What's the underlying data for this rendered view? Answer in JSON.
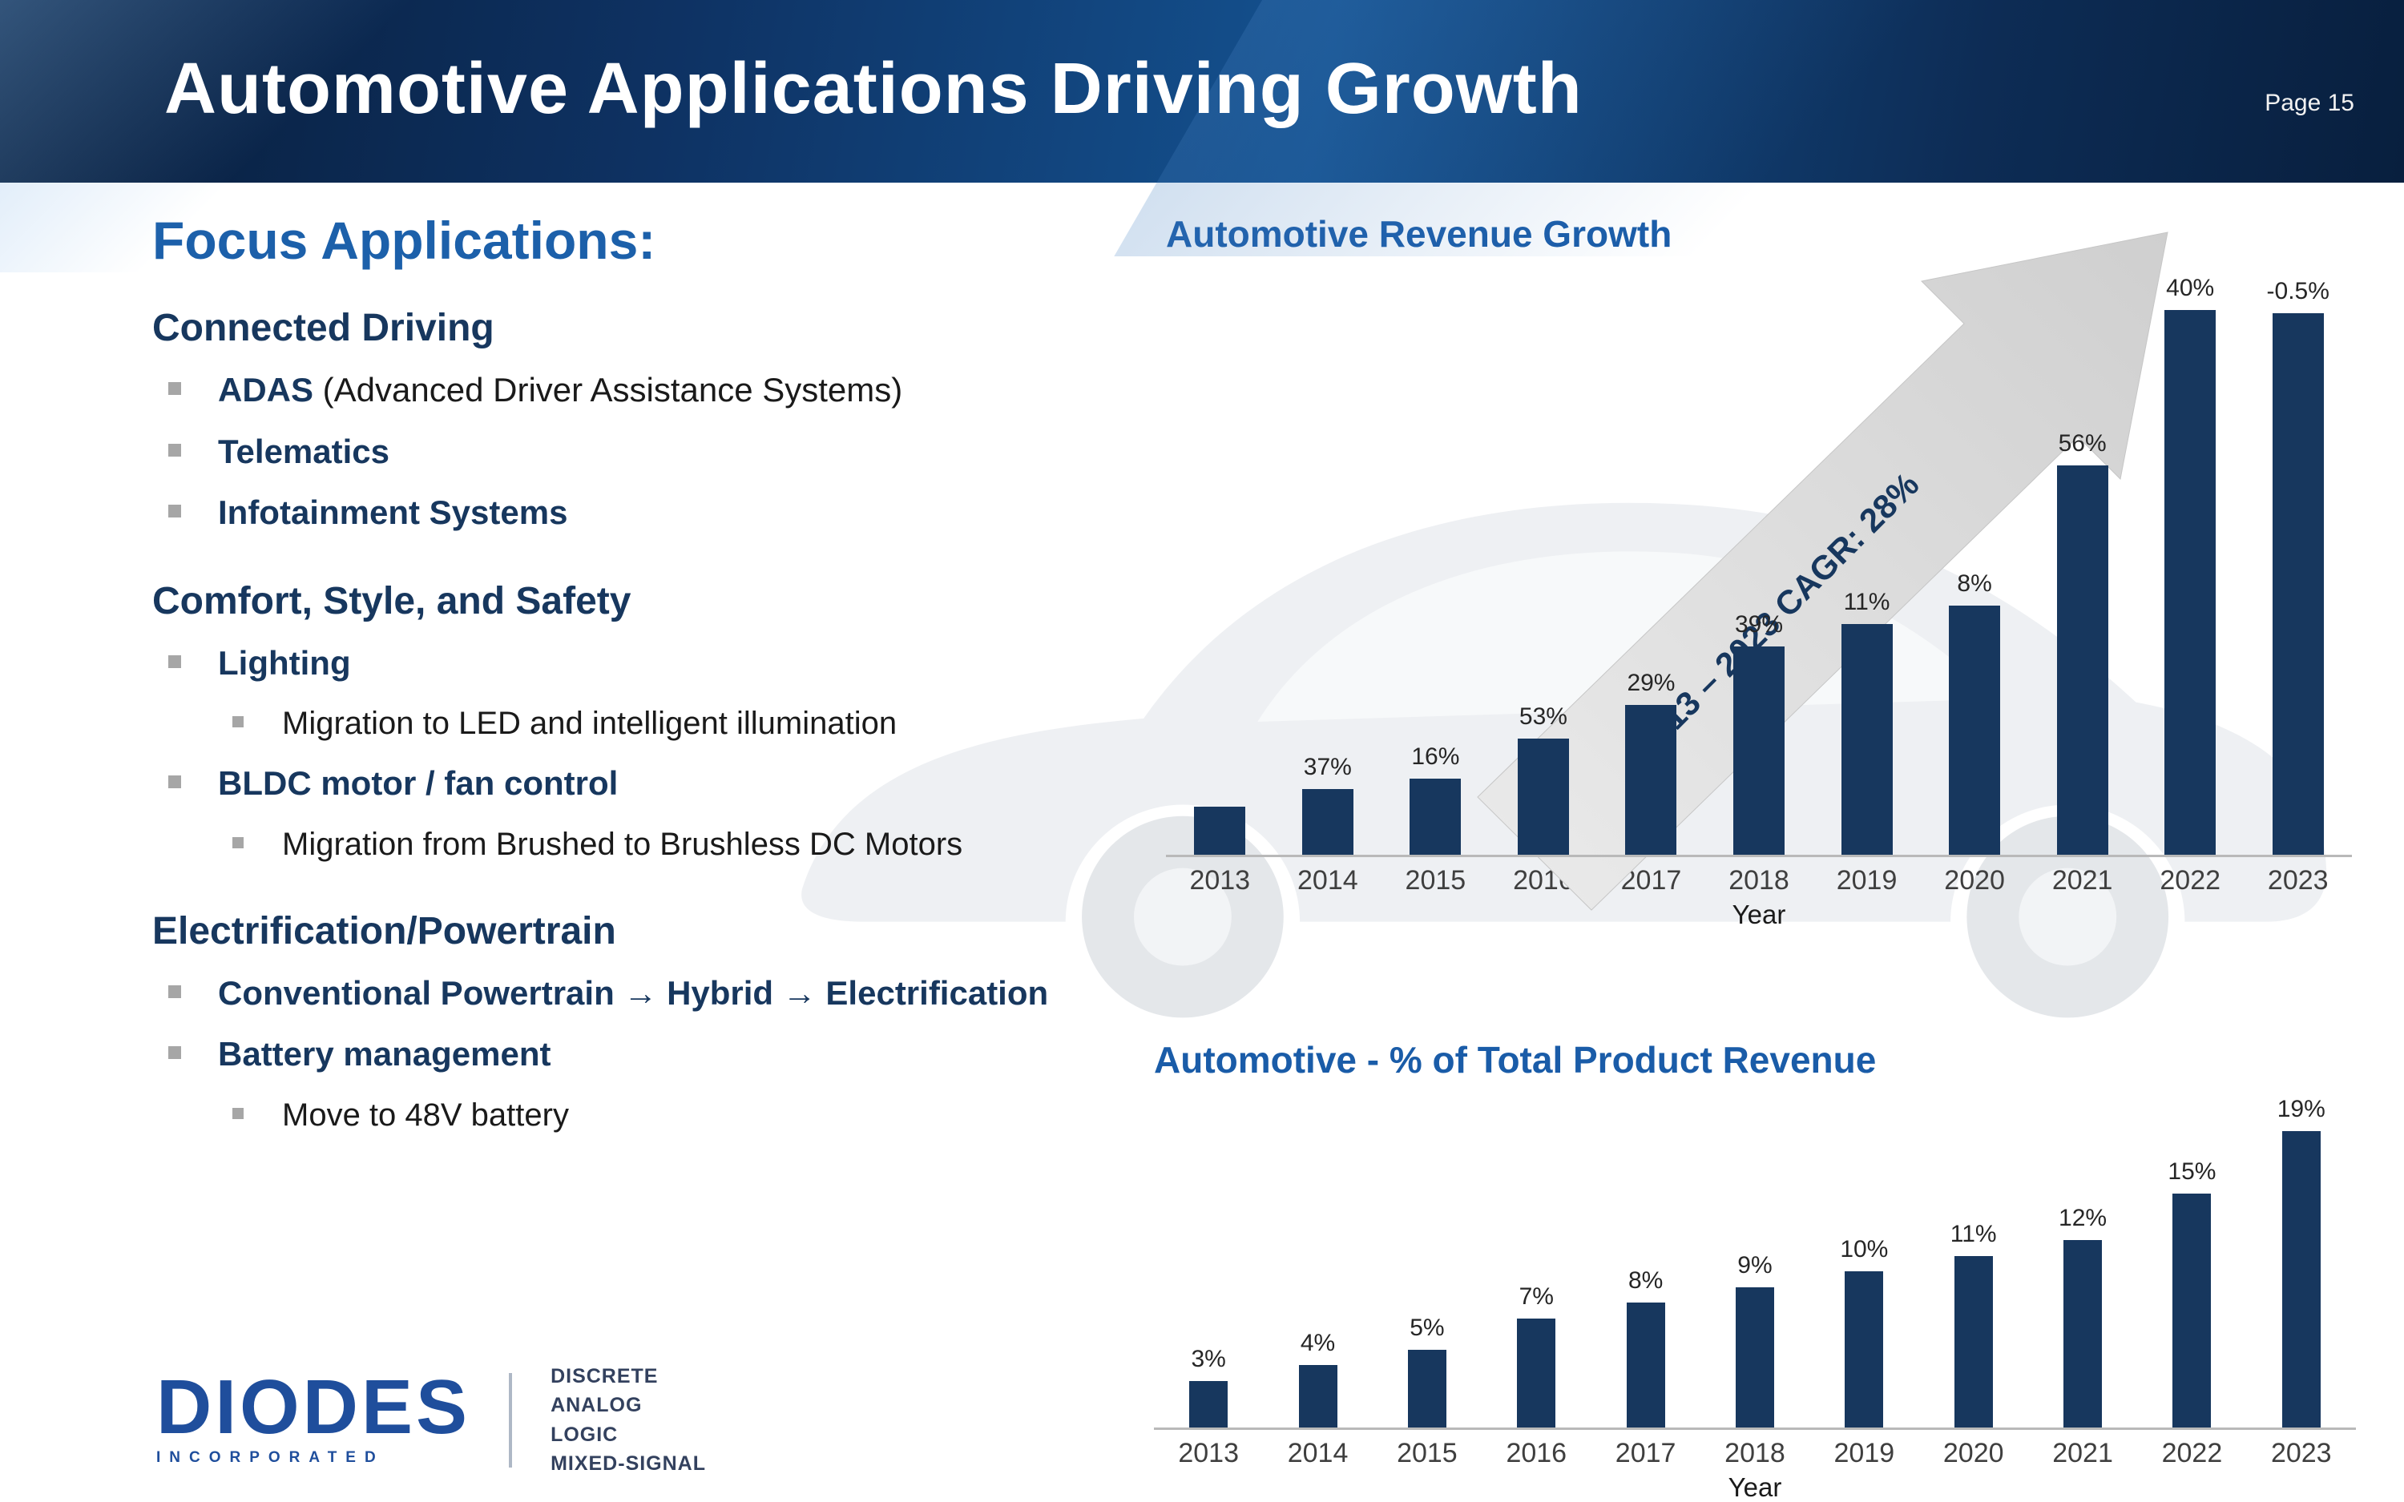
{
  "page": {
    "title": "Automotive Applications Driving Growth",
    "page_number": "Page 15"
  },
  "focus": {
    "heading": "Focus Applications:",
    "sections": [
      {
        "title": "Connected Driving",
        "items": [
          {
            "level": 1,
            "bold": "ADAS",
            "text": " (Advanced Driver Assistance Systems)"
          },
          {
            "level": 1,
            "bold": "Telematics"
          },
          {
            "level": 1,
            "bold": "Infotainment Systems"
          }
        ]
      },
      {
        "title": "Comfort, Style, and Safety",
        "items": [
          {
            "level": 1,
            "bold": "Lighting"
          },
          {
            "level": 2,
            "text": "Migration to LED and intelligent illumination"
          },
          {
            "level": 1,
            "bold": "BLDC motor / fan control"
          },
          {
            "level": 2,
            "text": "Migration from Brushed to Brushless DC Motors"
          }
        ]
      },
      {
        "title": "Electrification/Powertrain",
        "items": [
          {
            "level": 1,
            "bold": "Conventional Powertrain → Hybrid → Electrification"
          },
          {
            "level": 1,
            "bold": "Battery management"
          },
          {
            "level": 2,
            "text": "Move to 48V battery"
          }
        ]
      }
    ]
  },
  "logo": {
    "name": "DIODES",
    "sub": "INCORPORATED",
    "tagline": [
      "DISCRETE",
      "ANALOG",
      "LOGIC",
      "MIXED-SIGNAL"
    ]
  },
  "chart_data": [
    {
      "type": "bar",
      "title": "Automotive Revenue Growth",
      "xlabel": "Year",
      "categories": [
        "2013",
        "2014",
        "2015",
        "2016",
        "2017",
        "2018",
        "2019",
        "2020",
        "2021",
        "2022",
        "2023"
      ],
      "values": [
        1.0,
        1.37,
        1.59,
        2.43,
        3.14,
        4.36,
        4.84,
        5.23,
        8.16,
        11.42,
        11.36
      ],
      "bar_labels": [
        "",
        "37%",
        "16%",
        "53%",
        "29%",
        "39%",
        "11%",
        "8%",
        "56%",
        "40%",
        "-0.5%"
      ],
      "annotation": "2013 – 2023 CAGR: 28%",
      "bar_color": "#17375e",
      "legend": "none",
      "grid": false
    },
    {
      "type": "bar",
      "title": "Automotive - % of Total Product Revenue",
      "xlabel": "Year",
      "categories": [
        "2013",
        "2014",
        "2015",
        "2016",
        "2017",
        "2018",
        "2019",
        "2020",
        "2021",
        "2022",
        "2023"
      ],
      "values": [
        3,
        4,
        5,
        7,
        8,
        9,
        10,
        11,
        12,
        15,
        19
      ],
      "bar_labels": [
        "3%",
        "4%",
        "5%",
        "7%",
        "8%",
        "9%",
        "10%",
        "11%",
        "12%",
        "15%",
        "19%"
      ],
      "bar_color": "#17375e",
      "legend": "none",
      "grid": false
    }
  ],
  "colors": {
    "header_navy": "#0e3263",
    "title_blue": "#1a5ca8",
    "section_navy": "#17375e",
    "bar_navy": "#17375e",
    "bullet_gray": "#a6a6a6",
    "arrow_gray": "#d9d9d9"
  }
}
